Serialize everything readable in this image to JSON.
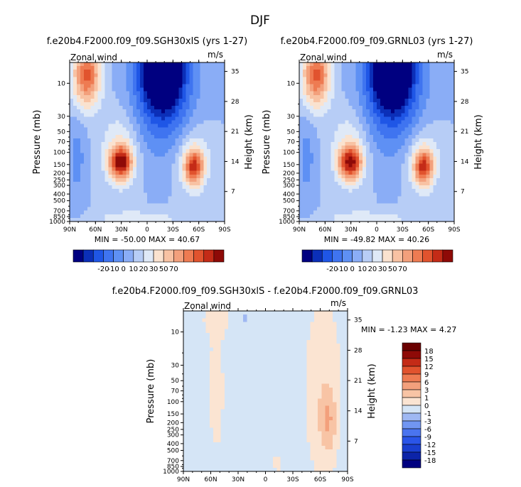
{
  "figure_title": "DJF",
  "chart_data": [
    {
      "type": "heatmap",
      "title": "f.e20b4.F2000.f09_f09.SGH30xlS (yrs 1-27)",
      "field_label": "Zonal wind",
      "units": "m/s",
      "ylabel": "Pressure (mb)",
      "ylabel_right": "Height (km)",
      "x_ticks": [
        "90N",
        "60N",
        "30N",
        "0",
        "30S",
        "60S",
        "90S"
      ],
      "pressure_ticks": [
        "10",
        "30",
        "50",
        "70",
        "100",
        "150",
        "200",
        "250",
        "300",
        "400",
        "500",
        "700",
        "850",
        "1000"
      ],
      "height_ticks": [
        "35",
        "28",
        "21",
        "14",
        "7"
      ],
      "stats": "MIN = -50.00   MAX =  40.67",
      "contour_levels": [
        -20,
        -10,
        0,
        10,
        20,
        30,
        50,
        70
      ],
      "colorbar_labels": [
        "-20",
        "-10",
        "0",
        "10",
        "20",
        "30",
        "50",
        "70"
      ],
      "colors": [
        "#000080",
        "#0b2fb8",
        "#1f56e6",
        "#3f74f0",
        "#5e90f4",
        "#8aadf6",
        "#b7cdf6",
        "#dfe9f7",
        "#fae2cf",
        "#f8c2a3",
        "#f3a07c",
        "#ee7b52",
        "#e1532e",
        "#c42b17",
        "#8e0a07"
      ]
    },
    {
      "type": "heatmap",
      "title": "f.e20b4.F2000.f09_f09.GRNL03 (yrs 1-27)",
      "field_label": "Zonal wind",
      "units": "m/s",
      "ylabel": "Pressure (mb)",
      "ylabel_right": "Height (km)",
      "x_ticks": [
        "90N",
        "60N",
        "30N",
        "0",
        "30S",
        "60S",
        "90S"
      ],
      "pressure_ticks": [
        "10",
        "30",
        "50",
        "70",
        "100",
        "150",
        "200",
        "250",
        "300",
        "400",
        "500",
        "700",
        "850",
        "1000"
      ],
      "height_ticks": [
        "35",
        "28",
        "21",
        "14",
        "7"
      ],
      "stats": "MIN = -49.82   MAX =  40.26",
      "contour_levels": [
        -20,
        -10,
        0,
        10,
        20,
        30,
        50,
        70
      ],
      "colorbar_labels": [
        "-20",
        "-10",
        "0",
        "10",
        "20",
        "30",
        "50",
        "70"
      ],
      "colors": [
        "#000080",
        "#0b2fb8",
        "#1f56e6",
        "#3f74f0",
        "#5e90f4",
        "#8aadf6",
        "#b7cdf6",
        "#dfe9f7",
        "#fae2cf",
        "#f8c2a3",
        "#f3a07c",
        "#ee7b52",
        "#e1532e",
        "#c42b17",
        "#8e0a07"
      ]
    },
    {
      "type": "heatmap",
      "title": "f.e20b4.F2000.f09_f09.SGH30xlS - f.e20b4.F2000.f09_f09.GRNL03",
      "field_label": "Zonal wind",
      "units": "m/s",
      "ylabel": "Pressure (mb)",
      "ylabel_right": "Height (km)",
      "x_ticks": [
        "90N",
        "60N",
        "30N",
        "0",
        "30S",
        "60S",
        "90S"
      ],
      "pressure_ticks": [
        "10",
        "30",
        "50",
        "70",
        "100",
        "150",
        "200",
        "250",
        "300",
        "400",
        "500",
        "700",
        "850",
        "1000"
      ],
      "height_ticks": [
        "35",
        "28",
        "21",
        "14",
        "7"
      ],
      "stats": "MIN =   -1.23   MAX =    4.27",
      "contour_levels": [
        -18,
        -15,
        -12,
        -9,
        -6,
        -3,
        -1,
        0,
        1,
        3,
        6,
        9,
        12,
        15,
        18
      ],
      "colorbar_labels": [
        "18",
        "15",
        "12",
        "9",
        "6",
        "3",
        "1",
        "0",
        "-1",
        "-3",
        "-6",
        "-9",
        "-12",
        "-15",
        "-18"
      ],
      "colors": [
        "#000080",
        "#0c24a8",
        "#1a3fcf",
        "#2a55e8",
        "#4a74ef",
        "#7196f2",
        "#9fb8f3",
        "#d5e5f6",
        "#fbe4d2",
        "#f8c4a5",
        "#f3a07c",
        "#ee7b52",
        "#e1532e",
        "#c42b17",
        "#8e0a07",
        "#6a0000"
      ]
    }
  ]
}
